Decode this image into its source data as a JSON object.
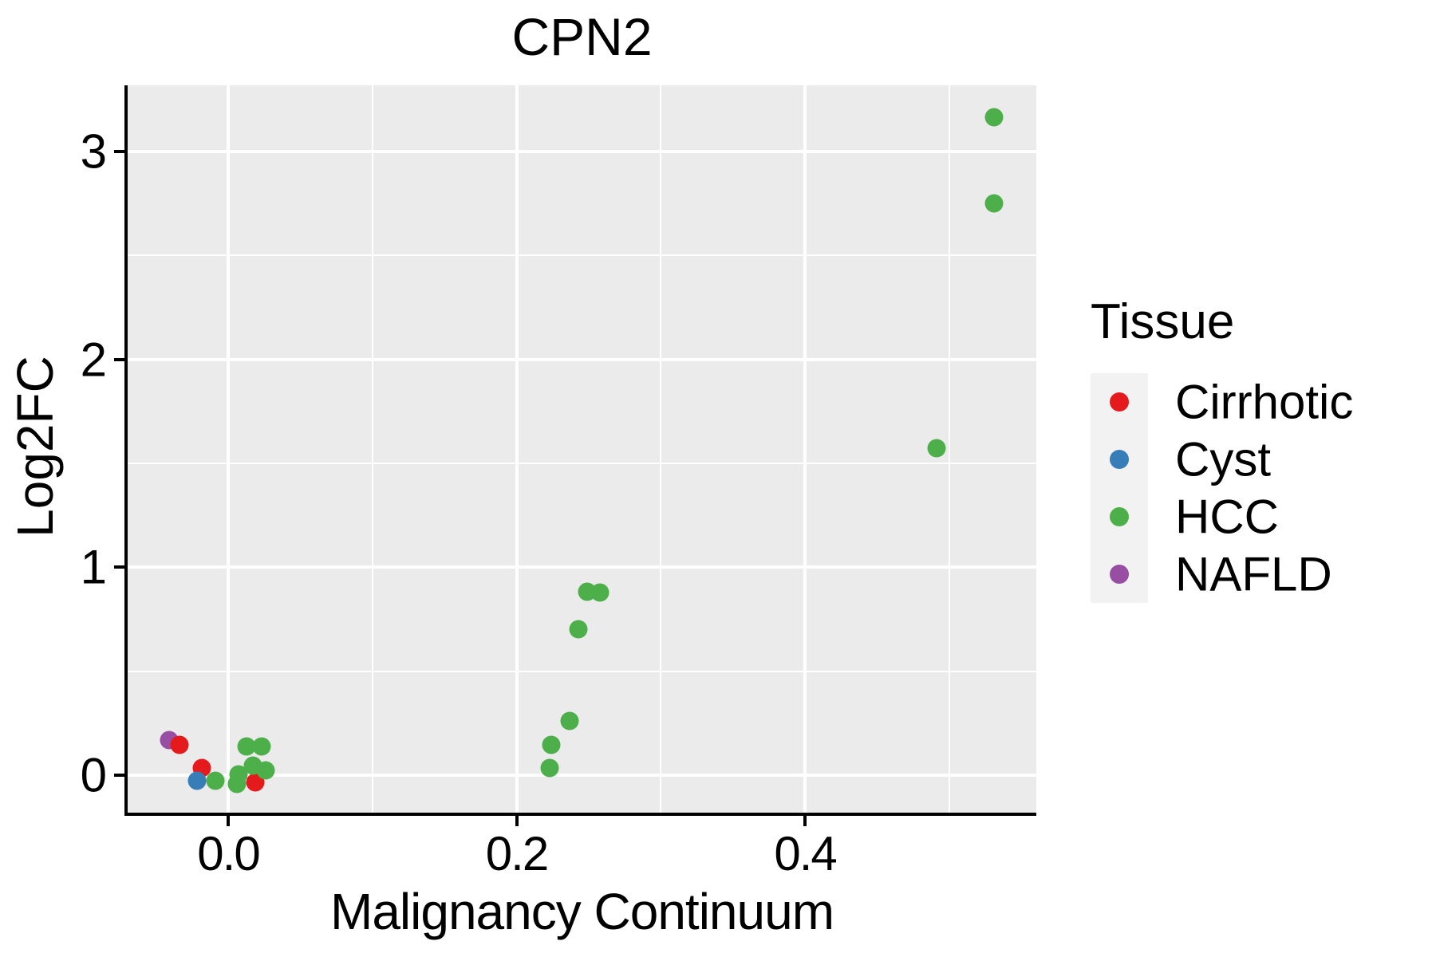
{
  "chart_data": {
    "type": "scatter",
    "title": "CPN2",
    "xlabel": "Malignancy Continuum",
    "ylabel": "Log2FC",
    "xlim": [
      -0.0697,
      0.5604
    ],
    "ylim": [
      -0.18,
      3.318
    ],
    "grid": true,
    "panel_background": "#EBEBEB",
    "gridline_color": "#ffffff",
    "x_major_ticks": [
      0.0,
      0.2,
      0.4
    ],
    "x_tick_labels": [
      "0.0",
      "0.2",
      "0.4"
    ],
    "x_minor_gridlines": [
      0.1,
      0.3,
      0.5
    ],
    "y_major_ticks": [
      0,
      1,
      2,
      3
    ],
    "y_tick_labels": [
      "0",
      "1",
      "2",
      "3"
    ],
    "y_minor_gridlines": [
      0.5,
      1.5,
      2.5
    ],
    "legend": {
      "title": "Tissue",
      "position": "right",
      "key_background": "#F2F2F2",
      "entries": [
        {
          "label": "Cirrhotic",
          "color": "#E41A1C"
        },
        {
          "label": "Cyst",
          "color": "#377EB8"
        },
        {
          "label": "HCC",
          "color": "#4DAF4A"
        },
        {
          "label": "NAFLD",
          "color": "#984EA3"
        }
      ]
    },
    "series_colors": {
      "Cirrhotic": "#E41A1C",
      "Cyst": "#377EB8",
      "HCC": "#4DAF4A",
      "NAFLD": "#984EA3"
    },
    "points": [
      {
        "tissue": "NAFLD",
        "x": -0.041,
        "y": 0.169
      },
      {
        "tissue": "Cirrhotic",
        "x": -0.034,
        "y": 0.146
      },
      {
        "tissue": "Cirrhotic",
        "x": -0.018,
        "y": 0.035
      },
      {
        "tissue": "Cyst",
        "x": -0.0215,
        "y": -0.025
      },
      {
        "tissue": "HCC",
        "x": -0.009,
        "y": -0.027
      },
      {
        "tissue": "Cirrhotic",
        "x": 0.019,
        "y": -0.036
      },
      {
        "tissue": "HCC",
        "x": 0.007,
        "y": 0.005
      },
      {
        "tissue": "HCC",
        "x": 0.006,
        "y": -0.042
      },
      {
        "tissue": "HCC",
        "x": 0.013,
        "y": 0.138
      },
      {
        "tissue": "HCC",
        "x": 0.023,
        "y": 0.14
      },
      {
        "tissue": "HCC",
        "x": 0.017,
        "y": 0.045
      },
      {
        "tissue": "HCC",
        "x": 0.026,
        "y": 0.022
      },
      {
        "tissue": "HCC",
        "x": 0.223,
        "y": 0.035
      },
      {
        "tissue": "HCC",
        "x": 0.224,
        "y": 0.146
      },
      {
        "tissue": "HCC",
        "x": 0.237,
        "y": 0.262
      },
      {
        "tissue": "HCC",
        "x": 0.243,
        "y": 0.704
      },
      {
        "tissue": "HCC",
        "x": 0.249,
        "y": 0.883
      },
      {
        "tissue": "HCC",
        "x": 0.258,
        "y": 0.877
      },
      {
        "tissue": "HCC",
        "x": 0.491,
        "y": 1.573
      },
      {
        "tissue": "HCC",
        "x": 0.531,
        "y": 3.163
      },
      {
        "tissue": "HCC",
        "x": 0.531,
        "y": 2.752
      }
    ]
  }
}
